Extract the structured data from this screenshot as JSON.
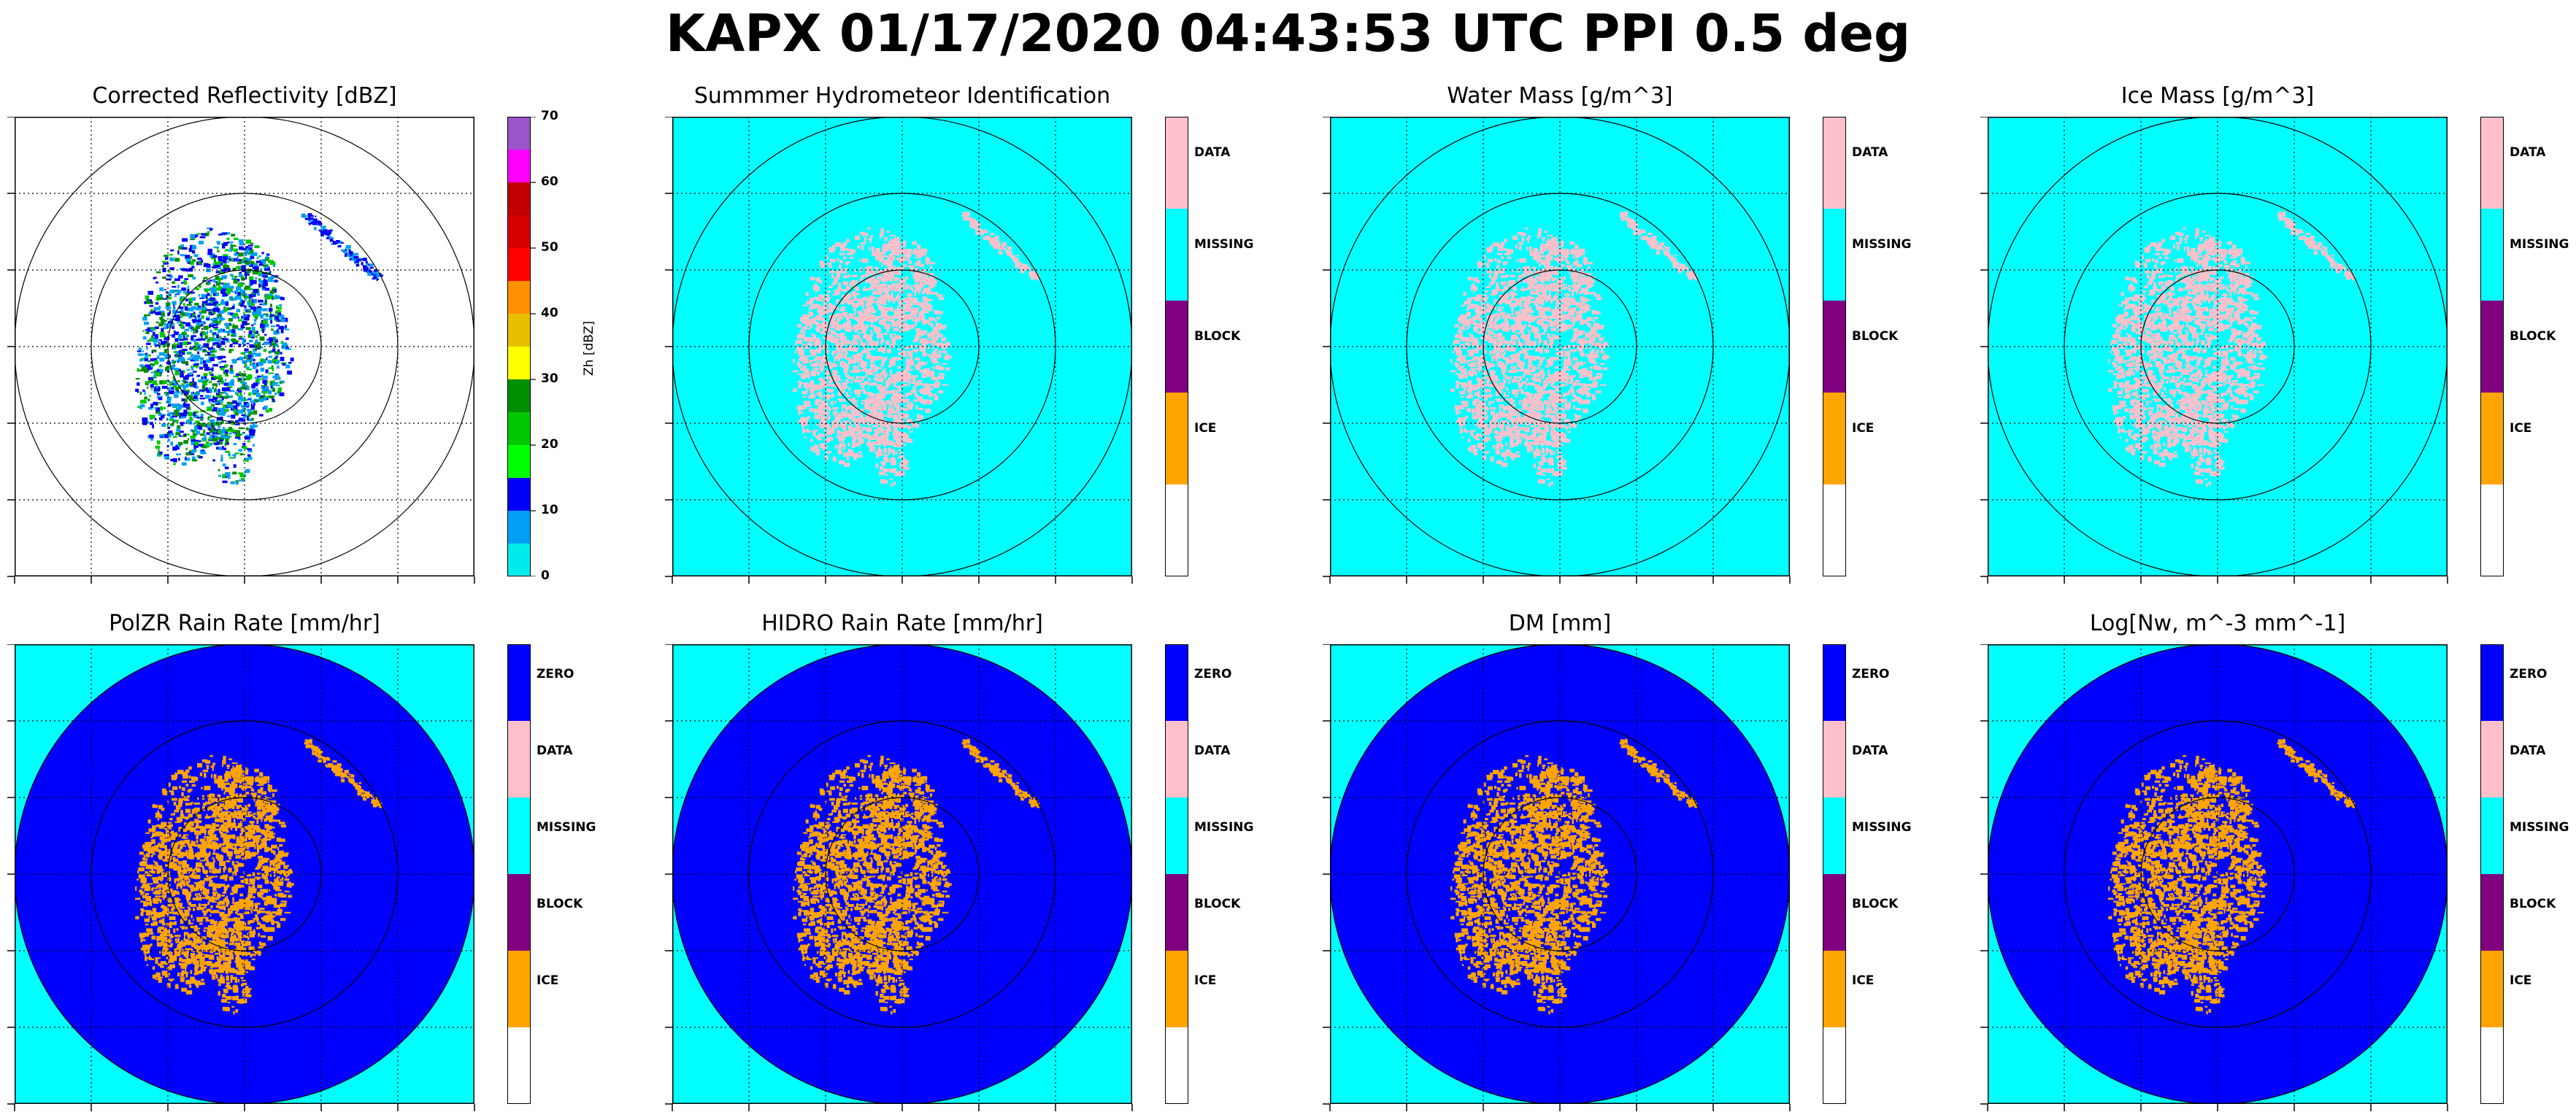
{
  "figure": {
    "title": "KAPX 01/17/2020 04:43:53 UTC PPI 0.5 deg"
  },
  "colors": {
    "ZERO": "#0000ff",
    "DATA": "#ffc0cb",
    "MISSING": "#00ffff",
    "BLOCK": "#800080",
    "ICE": "#ffa500",
    "NONE": "#ffffff"
  },
  "chart_data": [
    {
      "type": "heatmap",
      "projection": "ppi",
      "title": "Corrected Reflectivity [dBZ]",
      "background": "#ffffff",
      "range_rings": 3,
      "grid": "dotted",
      "colorbar": {
        "kind": "continuous",
        "label": "Zh [dBZ]",
        "ticks": [
          "0",
          "10",
          "20",
          "30",
          "40",
          "50",
          "60",
          "70"
        ],
        "range": [
          0,
          70
        ],
        "bins": [
          {
            "from": 0,
            "to": 5,
            "color": "#00ecec"
          },
          {
            "from": 5,
            "to": 10,
            "color": "#01a0f6"
          },
          {
            "from": 10,
            "to": 15,
            "color": "#0000f6"
          },
          {
            "from": 15,
            "to": 20,
            "color": "#00ff00"
          },
          {
            "from": 20,
            "to": 25,
            "color": "#00c800"
          },
          {
            "from": 25,
            "to": 30,
            "color": "#008f00"
          },
          {
            "from": 30,
            "to": 35,
            "color": "#ffff00"
          },
          {
            "from": 35,
            "to": 40,
            "color": "#e7c000"
          },
          {
            "from": 40,
            "to": 45,
            "color": "#ff9000"
          },
          {
            "from": 45,
            "to": 50,
            "color": "#ff0000"
          },
          {
            "from": 50,
            "to": 55,
            "color": "#d60000"
          },
          {
            "from": 55,
            "to": 60,
            "color": "#c00000"
          },
          {
            "from": 60,
            "to": 65,
            "color": "#ff00ff"
          },
          {
            "from": 65,
            "to": 70,
            "color": "#9955c9"
          }
        ]
      }
    },
    {
      "type": "heatmap",
      "projection": "ppi",
      "title": "Summmer Hydrometeor Identification",
      "background": "MISSING",
      "echo_class": "DATA",
      "range_rings": 3,
      "grid": "dotted",
      "colorbar": {
        "kind": "categorical",
        "categories": [
          "DATA",
          "MISSING",
          "BLOCK",
          "ICE"
        ],
        "colors": [
          "DATA",
          "MISSING",
          "BLOCK",
          "ICE",
          "NONE"
        ]
      }
    },
    {
      "type": "heatmap",
      "projection": "ppi",
      "title": "Water Mass [g/m^3]",
      "background": "MISSING",
      "echo_class": "DATA",
      "range_rings": 3,
      "grid": "dotted",
      "colorbar": {
        "kind": "categorical",
        "categories": [
          "DATA",
          "MISSING",
          "BLOCK",
          "ICE"
        ],
        "colors": [
          "DATA",
          "MISSING",
          "BLOCK",
          "ICE",
          "NONE"
        ]
      }
    },
    {
      "type": "heatmap",
      "projection": "ppi",
      "title": "Ice Mass [g/m^3]",
      "background": "MISSING",
      "echo_class": "DATA",
      "range_rings": 3,
      "grid": "dotted",
      "colorbar": {
        "kind": "categorical",
        "categories": [
          "DATA",
          "MISSING",
          "BLOCK",
          "ICE"
        ],
        "colors": [
          "DATA",
          "MISSING",
          "BLOCK",
          "ICE",
          "NONE"
        ]
      }
    },
    {
      "type": "heatmap",
      "projection": "ppi",
      "title": "PolZR Rain Rate [mm/hr]",
      "background": "MISSING",
      "disc": "ZERO",
      "echo_class": "ICE",
      "range_rings": 3,
      "grid": "dotted",
      "colorbar": {
        "kind": "categorical",
        "categories": [
          "ZERO",
          "DATA",
          "MISSING",
          "BLOCK",
          "ICE"
        ],
        "colors": [
          "ZERO",
          "DATA",
          "MISSING",
          "BLOCK",
          "ICE",
          "NONE"
        ]
      }
    },
    {
      "type": "heatmap",
      "projection": "ppi",
      "title": "HIDRO Rain Rate [mm/hr]",
      "background": "MISSING",
      "disc": "ZERO",
      "echo_class": "ICE",
      "range_rings": 3,
      "grid": "dotted",
      "colorbar": {
        "kind": "categorical",
        "categories": [
          "ZERO",
          "DATA",
          "MISSING",
          "BLOCK",
          "ICE"
        ],
        "colors": [
          "ZERO",
          "DATA",
          "MISSING",
          "BLOCK",
          "ICE",
          "NONE"
        ]
      }
    },
    {
      "type": "heatmap",
      "projection": "ppi",
      "title": "DM [mm]",
      "background": "MISSING",
      "disc": "ZERO",
      "echo_class": "ICE",
      "range_rings": 3,
      "grid": "dotted",
      "colorbar": {
        "kind": "categorical",
        "categories": [
          "ZERO",
          "DATA",
          "MISSING",
          "BLOCK",
          "ICE"
        ],
        "colors": [
          "ZERO",
          "DATA",
          "MISSING",
          "BLOCK",
          "ICE",
          "NONE"
        ]
      }
    },
    {
      "type": "heatmap",
      "projection": "ppi",
      "title": "Log[Nw, m^-3 mm^-1]",
      "background": "MISSING",
      "disc": "ZERO",
      "echo_class": "ICE",
      "range_rings": 3,
      "grid": "dotted",
      "colorbar": {
        "kind": "categorical",
        "categories": [
          "ZERO",
          "DATA",
          "MISSING",
          "BLOCK",
          "ICE"
        ],
        "colors": [
          "ZERO",
          "DATA",
          "MISSING",
          "BLOCK",
          "ICE",
          "NONE"
        ]
      }
    }
  ]
}
